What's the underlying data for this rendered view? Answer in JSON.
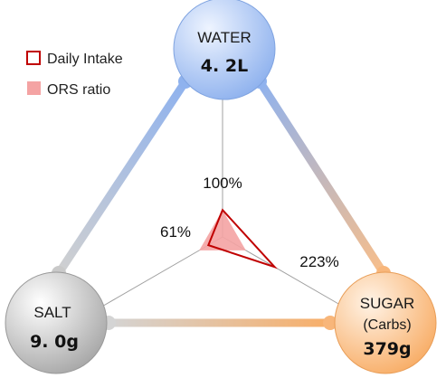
{
  "chart_data": {
    "type": "radar",
    "axes": [
      {
        "key": "water",
        "name": "WATER",
        "amount": "4. 2L",
        "pct_label": "100%"
      },
      {
        "key": "sugar",
        "name": "SUGAR",
        "name_line2": "(Carbs)",
        "amount": "379g",
        "pct_label": "223%"
      },
      {
        "key": "salt",
        "name": "SALT",
        "amount": "9. 0g",
        "pct_label": "61%"
      }
    ],
    "series": [
      {
        "name": "Daily Intake",
        "values": {
          "water": 100,
          "sugar": 223,
          "salt": 61
        },
        "color": "#c00000",
        "style": "outline"
      },
      {
        "name": "ORS ratio",
        "values": {
          "water": 100,
          "sugar": 100,
          "salt": 100
        },
        "color": "#f4a3a3",
        "style": "fill"
      }
    ],
    "max_value": 520,
    "legend_position": "top-left"
  },
  "colors": {
    "water_fill": "#9dbcf0",
    "sugar_fill": "#f9b97a",
    "salt_fill": "#b5b5b5",
    "intake_line": "#c00000",
    "ors_fill": "#f4a3a3"
  }
}
